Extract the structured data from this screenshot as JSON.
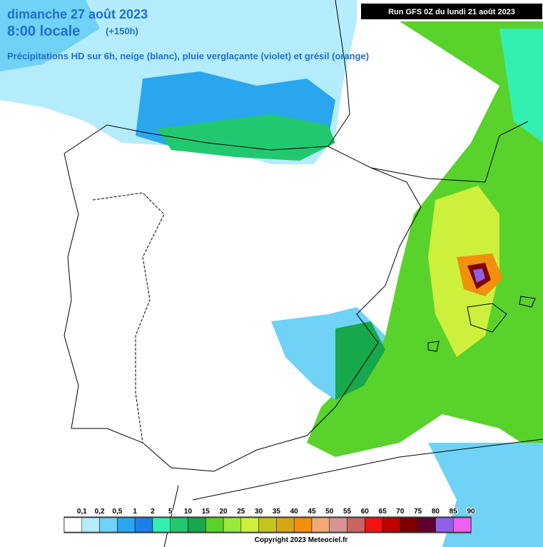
{
  "header": {
    "date": "dimanche 27 août 2023",
    "time": "8:00 locale",
    "lead": "(+150h)",
    "subtitle": "Précipitations HD sur 6h, neige (blanc), pluie verglaçante (violet) et grésil (orange)",
    "run": "Run GFS 0Z du lundi 21 août 2023"
  },
  "legend": {
    "labels": [
      "0,1",
      "0,2",
      "0,5",
      "1",
      "2",
      "5",
      "10",
      "15",
      "20",
      "25",
      "30",
      "35",
      "40",
      "45",
      "50",
      "55",
      "60",
      "65",
      "70",
      "75",
      "80",
      "85",
      "90"
    ],
    "colors": [
      "#ffffff",
      "#b4ecfc",
      "#6fd2f6",
      "#2aa6ee",
      "#1b7fe6",
      "#33f0b0",
      "#22c870",
      "#16a84a",
      "#5ad22c",
      "#9ae83a",
      "#cdf03c",
      "#c4c41e",
      "#d4a814",
      "#f0900c",
      "#f4a878",
      "#d89494",
      "#c86464",
      "#f01414",
      "#c00000",
      "#800000",
      "#600030",
      "#9060e8",
      "#f060f0"
    ]
  },
  "footer": {
    "copyright": "Copyright 2023 Meteociel.fr"
  }
}
